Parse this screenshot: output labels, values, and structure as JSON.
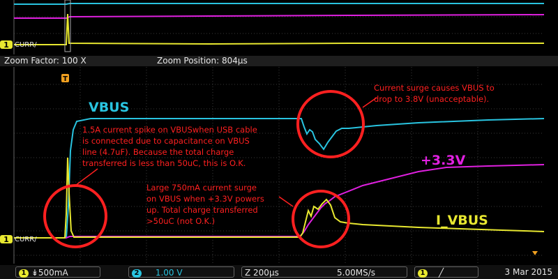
{
  "overview": {
    "channel_marker": "1",
    "channel_label": "CURR/"
  },
  "zoom": {
    "factor_text": "Zoom Factor: 100 X",
    "position_text": "Zoom Position: 804μs"
  },
  "main": {
    "trigger_marker": "T",
    "channel_marker": "1",
    "channel_label": "CURR/",
    "labels": {
      "vbus": "VBUS",
      "v33": "+3.3V",
      "ivbus": "I_VBUS"
    },
    "annotations": {
      "spike": [
        "1.5A current spike on VBUSwhen USB cable",
        "is connected due to capacitance on VBUS",
        "line (4.7uF). Because the total charge",
        "transferred is less than 50uC, this is O.K."
      ],
      "surge": [
        "Large 750mA current surge",
        "on VBUS when +3.3V powers",
        "up. Total charge transferred",
        ">50uC (not O.K.)"
      ],
      "drop": [
        "Current surge causes VBUS to",
        "drop to 3.8V (unacceptable)."
      ]
    }
  },
  "status_bar": {
    "ch1_badge": "1",
    "ch1_scale": "↡500mA",
    "ch2_badge": "2",
    "ch2_scale": "1.00 V",
    "timebase": "Z 200μs",
    "sample_rate": "5.00MS/s",
    "trig_badge": "1",
    "trig_slope": "╱",
    "date": "3 Mar  2015"
  },
  "colors": {
    "cyan": "#29c4e0",
    "magenta": "#e020e0",
    "yellow": "#e8e830",
    "red": "#ff2020",
    "orange": "#f0a020"
  }
}
